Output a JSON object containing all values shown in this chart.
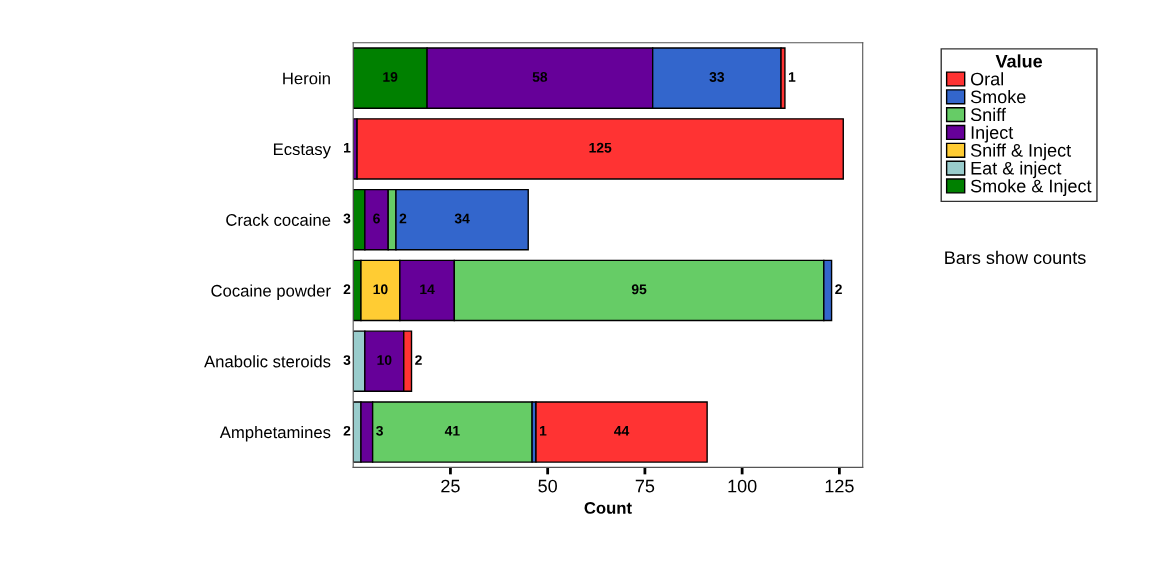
{
  "chart_data": {
    "type": "bar",
    "orientation": "horizontal",
    "stacked": true,
    "xlabel": "Count",
    "legend_title": "Value",
    "legend": "top right",
    "data_labels": true,
    "grid": false,
    "categories": [
      "Heroin",
      "Ecstasy",
      "Crack cocaine",
      "Cocaine powder",
      "Anabolic steroids",
      "Amphetamines"
    ],
    "xlim": [
      0,
      131
    ],
    "xticks": [
      25,
      50,
      75,
      100,
      125
    ],
    "annotations": [
      "Bars show counts"
    ],
    "series": [
      {
        "name": "Smoke & Inject",
        "color": "#008000",
        "values": [
          19,
          null,
          3,
          2,
          null,
          null
        ]
      },
      {
        "name": "Eat & inject",
        "color": "#99cccc",
        "values": [
          null,
          null,
          null,
          null,
          3,
          2
        ]
      },
      {
        "name": "Sniff & Inject",
        "color": "#ffcc33",
        "values": [
          null,
          null,
          null,
          10,
          null,
          null
        ]
      },
      {
        "name": "Inject",
        "color": "#660099",
        "values": [
          58,
          1,
          6,
          14,
          10,
          3
        ]
      },
      {
        "name": "Sniff",
        "color": "#66cc66",
        "values": [
          null,
          null,
          2,
          95,
          null,
          41
        ]
      },
      {
        "name": "Smoke",
        "color": "#3366cc",
        "values": [
          33,
          null,
          34,
          2,
          null,
          1
        ]
      },
      {
        "name": "Oral",
        "color": "#ff3333",
        "values": [
          1,
          125,
          null,
          null,
          2,
          44
        ]
      }
    ]
  }
}
